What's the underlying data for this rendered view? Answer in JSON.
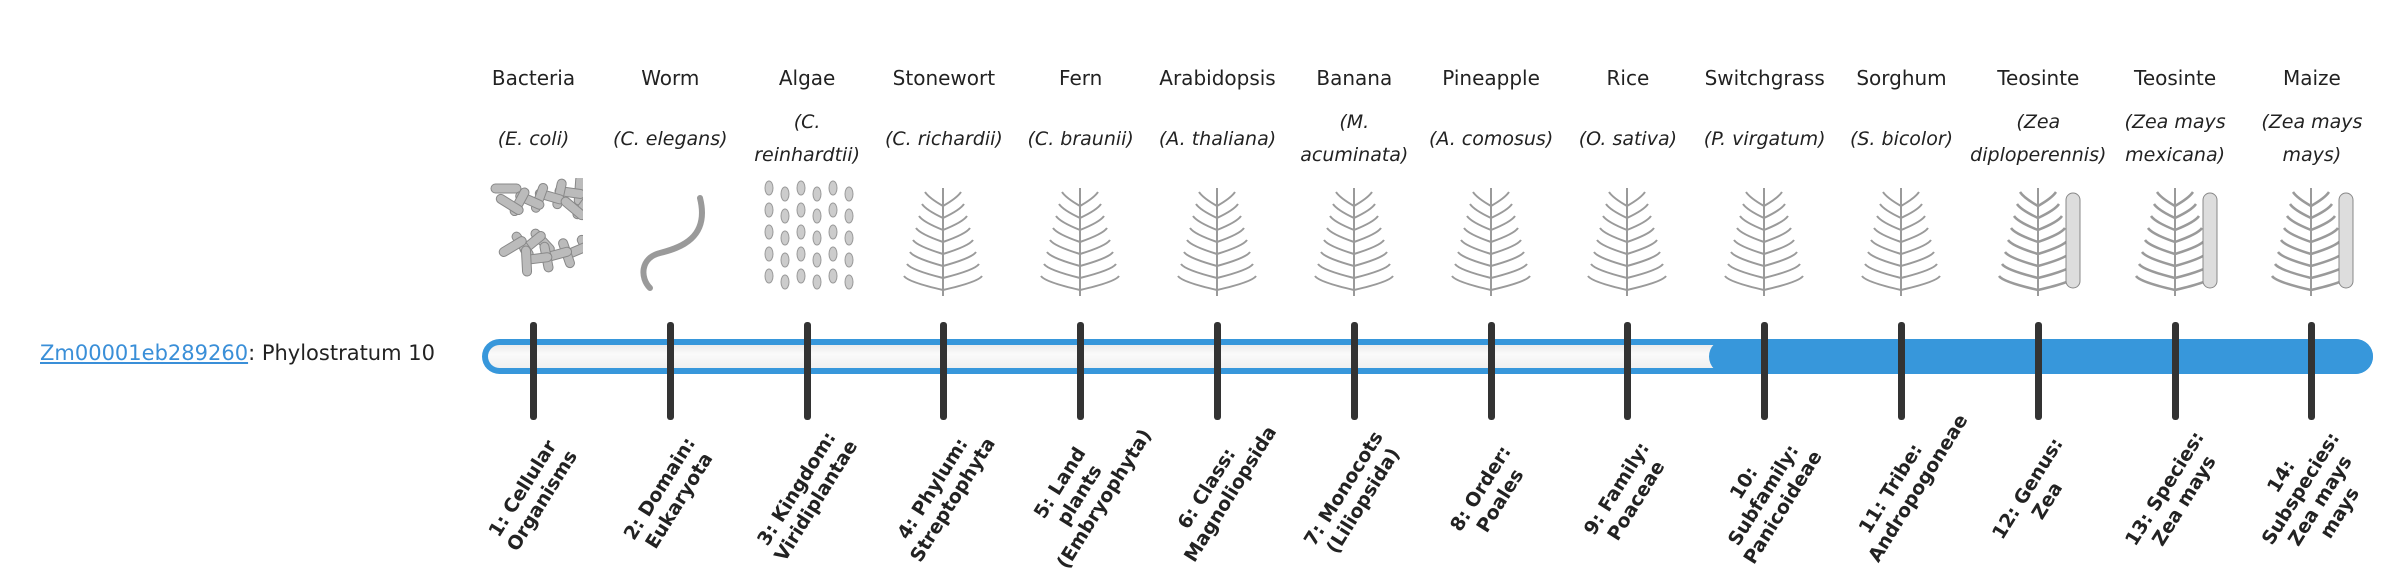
{
  "gene": {
    "id": "Zm00001eb289260",
    "suffix": ": Phylostratum 10"
  },
  "current_stratum": 10,
  "colors": {
    "bar": "#3797db",
    "tick": "#333333",
    "link": "#3a8fd8"
  },
  "organisms": [
    {
      "common": "Bacteria",
      "latin": "(E. coli)",
      "icon": "bacteria-image"
    },
    {
      "common": "Worm",
      "latin": "(C. elegans)",
      "icon": "worm-image"
    },
    {
      "common": "Algae",
      "latin": "(C. reinhardtii)",
      "icon": "algae-image"
    },
    {
      "common": "Stonewort",
      "latin": "(C. richardii)",
      "icon": "stonewort-image"
    },
    {
      "common": "Fern",
      "latin": "(C. braunii)",
      "icon": "fern-image"
    },
    {
      "common": "Arabidopsis",
      "latin": "(A. thaliana)",
      "icon": "arabidopsis-image"
    },
    {
      "common": "Banana",
      "latin": "(M. acuminata)",
      "icon": "banana-image"
    },
    {
      "common": "Pineapple",
      "latin": "(A. comosus)",
      "icon": "pineapple-image"
    },
    {
      "common": "Rice",
      "latin": "(O. sativa)",
      "icon": "rice-image"
    },
    {
      "common": "Switchgrass",
      "latin": "(P. virgatum)",
      "icon": "switchgrass-image"
    },
    {
      "common": "Sorghum",
      "latin": "(S. bicolor)",
      "icon": "sorghum-image"
    },
    {
      "common": "Teosinte",
      "latin": "(Zea diploperennis)",
      "icon": "teosinte-image"
    },
    {
      "common": "Teosinte",
      "latin": "(Zea mays mexicana)",
      "icon": "teosinte-image"
    },
    {
      "common": "Maize",
      "latin": "(Zea mays mays)",
      "icon": "maize-image"
    }
  ],
  "strata": [
    "1: Cellular Organisms",
    "2: Domain: Eukaryota",
    "3: Kingdom: Viridiplantae",
    "4: Phylum: Streptophyta",
    "5: Land plants (Embryophyta)",
    "6: Class: Magnoliopsida",
    "7: Monocots (Liliopsida)",
    "8: Order: Poales",
    "9: Family: Poaceae",
    "10: Subfamily: Panicoideae",
    "11: Tribe: Andropogoneae",
    "12: Genus: Zea",
    "13: Species: Zea mays",
    "14: Subspecies: Zea mays mays"
  ]
}
